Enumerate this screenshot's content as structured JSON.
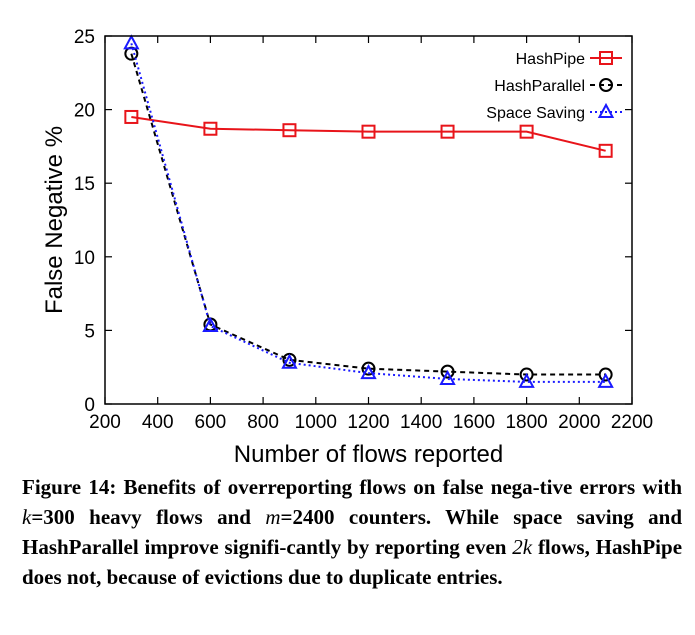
{
  "chart_data": {
    "type": "line",
    "title": "",
    "xlabel": "Number of flows reported",
    "ylabel": "False Negative %",
    "xlim": [
      200,
      2200
    ],
    "ylim": [
      0,
      25
    ],
    "xticks": [
      200,
      400,
      600,
      800,
      1000,
      1200,
      1400,
      1600,
      1800,
      2000,
      2200
    ],
    "yticks": [
      0,
      5,
      10,
      15,
      20,
      25
    ],
    "x": [
      300,
      600,
      900,
      1200,
      1500,
      1800,
      2100
    ],
    "legend_position": "top-right",
    "series": [
      {
        "name": "HashPipe",
        "color": "#e8141a",
        "marker": "square",
        "line": "solid",
        "values": [
          19.5,
          18.7,
          18.6,
          18.5,
          18.5,
          18.5,
          17.2
        ]
      },
      {
        "name": "HashParallel",
        "color": "#000000",
        "marker": "circle",
        "line": "dashed",
        "values": [
          23.8,
          5.4,
          3.0,
          2.4,
          2.2,
          2.0,
          2.0
        ]
      },
      {
        "name": "Space Saving",
        "color": "#1a1aff",
        "marker": "triangle",
        "line": "dotted",
        "values": [
          24.5,
          5.3,
          2.8,
          2.1,
          1.7,
          1.5,
          1.5
        ]
      }
    ]
  },
  "caption": {
    "fig_label": "Figure 14:",
    "p1": "Benefits of overreporting flows on false nega-tive errors with",
    "k_var": "k",
    "p2": "=300 heavy flows and",
    "m_var": "m",
    "p3": "=2400 counters. While space saving and HashParallel improve signifi-cantly by reporting even",
    "two_k": "2k",
    "p4": "flows, HashPipe does not, because of evictions due to duplicate entries."
  }
}
